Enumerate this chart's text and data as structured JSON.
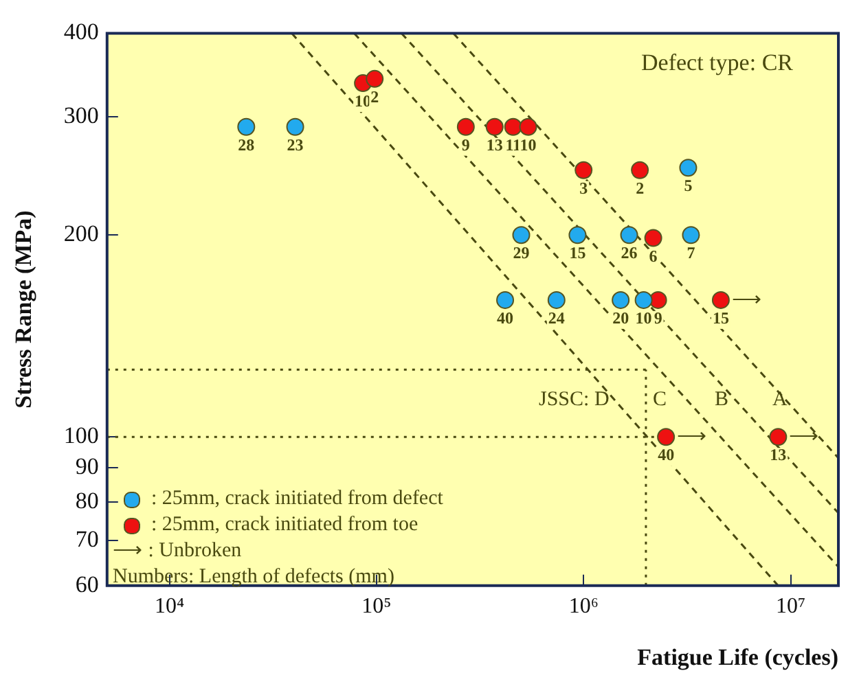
{
  "chart_data": {
    "type": "scatter",
    "xlabel": "Fatigue Life (cycles)",
    "ylabel": "Stress Range (MPa)",
    "log": "xy",
    "grid": false,
    "legend": "bottom left",
    "marker": "circle",
    "xlim": [
      5000,
      17000000
    ],
    "ylim": [
      60,
      400
    ],
    "xticks": [
      {
        "value": 10000,
        "label": "10⁴"
      },
      {
        "value": 100000,
        "label": "10⁵"
      },
      {
        "value": 1000000,
        "label": "10⁶"
      },
      {
        "value": 10000000,
        "label": "10⁷"
      }
    ],
    "yticks": [
      60,
      70,
      80,
      90,
      100,
      200,
      300,
      400
    ],
    "series": [
      {
        "name": ": 25mm, crack initiated from defect",
        "color": "#22aaee",
        "x": [
          23500,
          40500,
          3200000,
          500000,
          935000,
          1660000,
          3300000,
          418000,
          740000,
          1510000,
          1950000
        ],
        "values": [
          290,
          290,
          252,
          200,
          200,
          200,
          200,
          160,
          160,
          160,
          160
        ]
      },
      {
        "name": ": 25mm, crack initiated from toe",
        "color": "#ee1111",
        "x": [
          86000,
          98000,
          270000,
          372000,
          457000,
          540000,
          1000000,
          1870000,
          2170000,
          2290000,
          4600000,
          2500000,
          8700000
        ],
        "values": [
          337,
          342,
          290,
          290,
          290,
          290,
          250,
          250,
          198,
          160,
          160,
          100,
          100
        ]
      },
      {
        "type": "line",
        "line_style": "dashed",
        "marker": "none",
        "color": "#4a4a10",
        "x": [
          39000,
          8700000
        ],
        "values": [
          400,
          60
        ]
      },
      {
        "type": "line",
        "line_style": "dashed",
        "marker": "none",
        "color": "#4a4a10",
        "x": [
          78000,
          17000000
        ],
        "values": [
          400,
          64
        ]
      },
      {
        "type": "line",
        "line_style": "dashed",
        "marker": "none",
        "color": "#4a4a10",
        "x": [
          132000,
          17000000
        ],
        "values": [
          400,
          77
        ]
      },
      {
        "type": "line",
        "line_style": "dashed",
        "marker": "none",
        "color": "#4a4a10",
        "x": [
          235000,
          17000000
        ],
        "values": [
          400,
          93
        ]
      },
      {
        "type": "line",
        "line_style": "dotted",
        "marker": "none",
        "color": "#4a4a10",
        "x": [
          5000,
          2000000
        ],
        "values": [
          126,
          126
        ]
      },
      {
        "type": "line",
        "line_style": "dotted",
        "marker": "none",
        "color": "#4a4a10",
        "x": [
          5000,
          2500000
        ],
        "values": [
          100,
          100
        ]
      },
      {
        "type": "line",
        "line_style": "dotted",
        "marker": "none",
        "color": "#4a4a10",
        "x": [
          2000000,
          2000000
        ],
        "values": [
          60,
          126
        ]
      }
    ],
    "annotations": [
      "Defect type: CR",
      "⟶ : Unbroken",
      "Numbers: Length of defects (mm)",
      "JSSC: D",
      "C",
      "B",
      "A",
      {
        "text": "28",
        "x": 23500,
        "y": 290
      },
      {
        "text": "23",
        "x": 40500,
        "y": 290
      },
      {
        "text": "5",
        "x": 3200000,
        "y": 252
      },
      {
        "text": "29",
        "x": 500000,
        "y": 200
      },
      {
        "text": "15",
        "x": 935000,
        "y": 200
      },
      {
        "text": "26",
        "x": 1660000,
        "y": 200
      },
      {
        "text": "7",
        "x": 3300000,
        "y": 200
      },
      {
        "text": "40",
        "x": 418000,
        "y": 160
      },
      {
        "text": "24",
        "x": 740000,
        "y": 160
      },
      {
        "text": "20",
        "x": 1510000,
        "y": 160
      },
      {
        "text": "10",
        "x": 1950000,
        "y": 160
      },
      {
        "text": "10",
        "x": 86000,
        "y": 337
      },
      {
        "text": "2",
        "x": 98000,
        "y": 342
      },
      {
        "text": "9",
        "x": 270000,
        "y": 290
      },
      {
        "text": "13",
        "x": 372000,
        "y": 290
      },
      {
        "text": "11",
        "x": 457000,
        "y": 290
      },
      {
        "text": "10",
        "x": 540000,
        "y": 290
      },
      {
        "text": "3",
        "x": 1000000,
        "y": 250
      },
      {
        "text": "2",
        "x": 1870000,
        "y": 250
      },
      {
        "text": "6",
        "x": 2170000,
        "y": 198
      },
      {
        "text": "9",
        "x": 2290000,
        "y": 160
      },
      {
        "text": "15",
        "x": 4600000,
        "y": 160
      },
      {
        "text": "40",
        "x": 2500000,
        "y": 100
      },
      {
        "text": "13",
        "x": 8700000,
        "y": 100
      },
      {
        "text": "⟶",
        "x": 4600000,
        "y": 160
      },
      {
        "text": "⟶",
        "x": 2500000,
        "y": 100
      },
      {
        "text": "⟶",
        "x": 8700000,
        "y": 100
      }
    ]
  }
}
